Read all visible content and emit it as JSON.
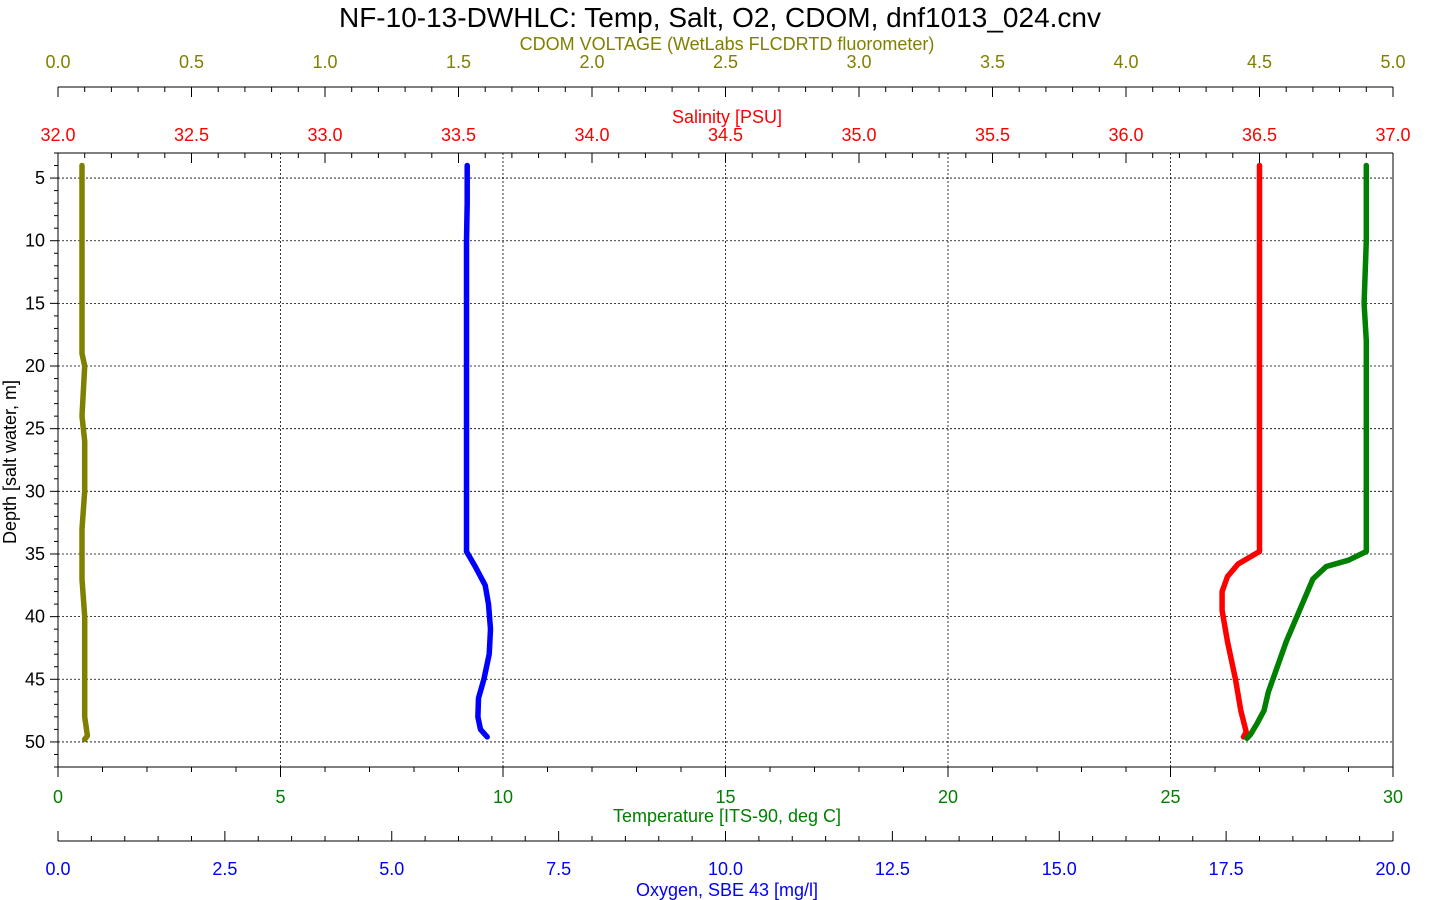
{
  "title": "NF-10-13-DWHLC: Temp, Salt, O2, CDOM, dnf1013_024.cnv",
  "colors": {
    "cdom": "#808000",
    "salinity": "#ff0000",
    "temperature": "#008000",
    "oxygen": "#0000ff",
    "grid": "#000000"
  },
  "chart_data": {
    "type": "line",
    "title": "NF-10-13-DWHLC: Temp, Salt, O2, CDOM, dnf1013_024.cnv",
    "ylabel": "Depth [salt water, m]",
    "ylim": [
      52,
      3
    ],
    "y_ticks": [
      "5",
      "10",
      "15",
      "20",
      "25",
      "30",
      "35",
      "40",
      "45",
      "50"
    ],
    "grid": true,
    "axes": {
      "cdom": {
        "label": "CDOM VOLTAGE (WetLabs FLCDRTD fluorometer)",
        "position": "top",
        "range": [
          0,
          5
        ],
        "ticks": [
          "0.0",
          "0.5",
          "1.0",
          "1.5",
          "2.0",
          "2.5",
          "3.0",
          "3.5",
          "4.0",
          "4.5",
          "5.0"
        ]
      },
      "salinity": {
        "label": "Salinity [PSU]",
        "position": "top",
        "range": [
          32,
          37
        ],
        "ticks": [
          "32.0",
          "32.5",
          "33.0",
          "33.5",
          "34.0",
          "34.5",
          "35.0",
          "35.5",
          "36.0",
          "36.5",
          "37.0"
        ]
      },
      "temperature": {
        "label": "Temperature [ITS-90, deg C]",
        "position": "bottom",
        "range": [
          0,
          30
        ],
        "ticks": [
          "0",
          "5",
          "10",
          "15",
          "20",
          "25",
          "30"
        ]
      },
      "oxygen": {
        "label": "Oxygen, SBE 43 [mg/l]",
        "position": "bottom",
        "range": [
          0,
          20
        ],
        "ticks": [
          "0.0",
          "2.5",
          "5.0",
          "7.5",
          "10.0",
          "12.5",
          "15.0",
          "17.5",
          "20.0"
        ]
      }
    },
    "series": [
      {
        "name": "CDOM VOLTAGE (WetLabs FLCDRTD fluorometer)",
        "axis": "cdom",
        "points": [
          [
            0.09,
            4
          ],
          [
            0.09,
            10
          ],
          [
            0.09,
            19
          ],
          [
            0.1,
            20
          ],
          [
            0.09,
            24
          ],
          [
            0.1,
            26
          ],
          [
            0.1,
            30
          ],
          [
            0.09,
            33
          ],
          [
            0.09,
            37
          ],
          [
            0.1,
            40
          ],
          [
            0.1,
            45
          ],
          [
            0.1,
            48
          ],
          [
            0.11,
            49.5
          ],
          [
            0.1,
            49.8
          ]
        ]
      },
      {
        "name": "Oxygen, SBE 43 [mg/l]",
        "axis": "oxygen",
        "points": [
          [
            6.13,
            4
          ],
          [
            6.13,
            7
          ],
          [
            6.12,
            10
          ],
          [
            6.12,
            20
          ],
          [
            6.12,
            30
          ],
          [
            6.12,
            34.8
          ],
          [
            6.25,
            36
          ],
          [
            6.4,
            37.5
          ],
          [
            6.45,
            39
          ],
          [
            6.48,
            41
          ],
          [
            6.46,
            43
          ],
          [
            6.38,
            45
          ],
          [
            6.3,
            46.5
          ],
          [
            6.29,
            48
          ],
          [
            6.33,
            49
          ],
          [
            6.43,
            49.6
          ]
        ]
      },
      {
        "name": "Salinity [PSU]",
        "axis": "salinity",
        "points": [
          [
            36.5,
            4
          ],
          [
            36.5,
            10
          ],
          [
            36.5,
            20
          ],
          [
            36.5,
            30
          ],
          [
            36.5,
            34.8
          ],
          [
            36.42,
            35.8
          ],
          [
            36.38,
            36.8
          ],
          [
            36.36,
            38
          ],
          [
            36.36,
            39.5
          ],
          [
            36.38,
            42
          ],
          [
            36.41,
            45
          ],
          [
            36.43,
            47.5
          ],
          [
            36.45,
            49.2
          ],
          [
            36.44,
            49.6
          ]
        ]
      },
      {
        "name": "Temperature [ITS-90, deg C]",
        "axis": "temperature",
        "points": [
          [
            29.4,
            4
          ],
          [
            29.4,
            10
          ],
          [
            29.35,
            15
          ],
          [
            29.4,
            18
          ],
          [
            29.4,
            25
          ],
          [
            29.4,
            30
          ],
          [
            29.4,
            34.8
          ],
          [
            29.0,
            35.5
          ],
          [
            28.5,
            36
          ],
          [
            28.2,
            37
          ],
          [
            27.9,
            39.5
          ],
          [
            27.6,
            42
          ],
          [
            27.4,
            44
          ],
          [
            27.2,
            46
          ],
          [
            27.1,
            47.5
          ],
          [
            26.95,
            48.5
          ],
          [
            26.8,
            49.4
          ],
          [
            26.72,
            49.7
          ]
        ]
      }
    ]
  }
}
